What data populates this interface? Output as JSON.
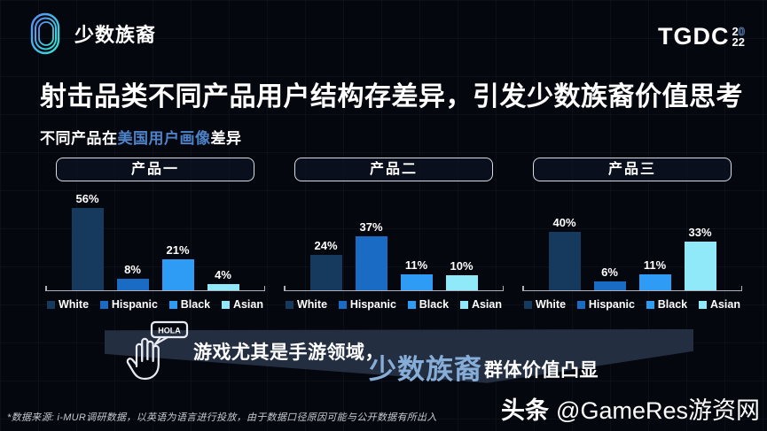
{
  "header": {
    "section_title": "少数族裔",
    "event_logo": {
      "text": "TGDC",
      "year_top_first": "2",
      "year_top_zero": "0",
      "year_bottom": "22"
    }
  },
  "title": "射击品类不同产品用户结构存差异，引发少数族裔价值思考",
  "subtitle": {
    "prefix": "不同产品在",
    "highlight": "美国用户画像",
    "suffix": "差异"
  },
  "chart_data": {
    "type": "bar",
    "categories": [
      "White",
      "Hispanic",
      "Black",
      "Asian"
    ],
    "series": [
      {
        "name": "产品一",
        "values": [
          56,
          8,
          21,
          4
        ]
      },
      {
        "name": "产品二",
        "values": [
          24,
          37,
          11,
          10
        ]
      },
      {
        "name": "产品三",
        "values": [
          40,
          6,
          11,
          33
        ]
      }
    ],
    "unit": "%",
    "colors": [
      "#16395E",
      "#1A6BC3",
      "#2E9CF5",
      "#8FE9F9"
    ],
    "ylim": [
      0,
      60
    ],
    "legend_position": "bottom",
    "grid": false,
    "title": "不同产品在美国用户画像差异"
  },
  "banner": {
    "bubble_text": "HOLA",
    "line1": "游戏尤其是手游领域，",
    "highlight": "少数族裔",
    "line2_suffix": "群体价值凸显"
  },
  "footnote": "*数据来源: i-MUR调研数据，以英语为语言进行投放，由于数据口径原因可能与公开数据有所出入",
  "watermark": {
    "bold": "头条",
    "rest": "@GameRes游资网"
  }
}
